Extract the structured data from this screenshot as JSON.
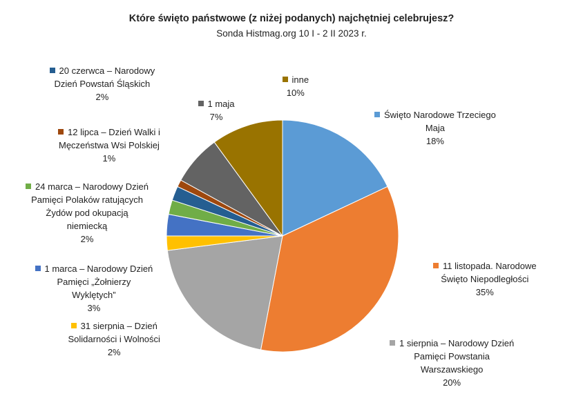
{
  "chart_data": {
    "type": "pie",
    "title": "Które święto państwowe (z niżej podanych) najchętniej celebrujesz?",
    "subtitle": "Sonda Histmag.org 10 I - 2 II 2023 r.",
    "legend": "none",
    "slices": [
      {
        "label_lines": [
          "Święto Narodowe Trzeciego",
          "Maja"
        ],
        "value": 18,
        "pct_text": "18%",
        "color": "#5b9bd5"
      },
      {
        "label_lines": [
          "11 listopada. Narodowe",
          "Święto Niepodległości"
        ],
        "value": 35,
        "pct_text": "35%",
        "color": "#ed7d31"
      },
      {
        "label_lines": [
          "1 sierpnia – Narodowy Dzień",
          "Pamięci Powstania",
          "Warszawskiego"
        ],
        "value": 20,
        "pct_text": "20%",
        "color": "#a5a5a5"
      },
      {
        "label_lines": [
          "31 sierpnia – Dzień",
          "Solidarności i Wolności"
        ],
        "value": 2,
        "pct_text": "2%",
        "color": "#ffc000"
      },
      {
        "label_lines": [
          "1 marca – Narodowy Dzień",
          "Pamięci „Żołnierzy",
          "Wyklętych”"
        ],
        "value": 3,
        "pct_text": "3%",
        "color": "#4472c4"
      },
      {
        "label_lines": [
          "24 marca – Narodowy Dzień",
          "Pamięci Polaków ratujących",
          "Żydów pod okupacją",
          "niemiecką"
        ],
        "value": 2,
        "pct_text": "2%",
        "color": "#70ad47"
      },
      {
        "label_lines": [
          "20 czerwca – Narodowy",
          "Dzień Powstań Śląskich"
        ],
        "value": 2,
        "pct_text": "2%",
        "color": "#255e91"
      },
      {
        "label_lines": [
          "12 lipca – Dzień Walki i",
          "Męczeństwa Wsi Polskiej"
        ],
        "value": 1,
        "pct_text": "1%",
        "color": "#9e480e"
      },
      {
        "label_lines": [
          "1 maja"
        ],
        "value": 7,
        "pct_text": "7%",
        "color": "#636363"
      },
      {
        "label_lines": [
          "inne"
        ],
        "value": 10,
        "pct_text": "10%",
        "color": "#997300"
      }
    ]
  }
}
